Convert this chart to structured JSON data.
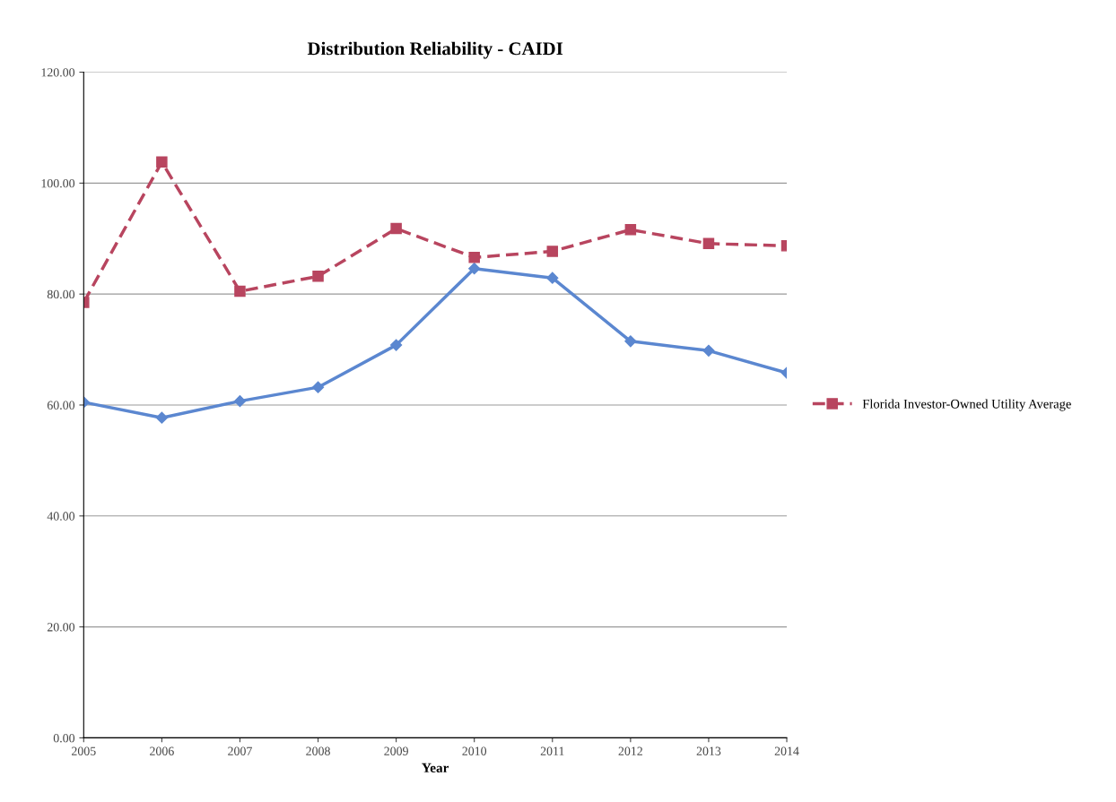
{
  "chart_data": {
    "type": "line",
    "title": "Distribution Reliability - CAIDI",
    "xlabel": "Year",
    "categories": [
      "2005",
      "2006",
      "2007",
      "2008",
      "2009",
      "2010",
      "2011",
      "2012",
      "2013",
      "2014"
    ],
    "series": [
      {
        "color": "#5b87d0",
        "marker": "diamond",
        "line_style": "solid",
        "values": [
          60.5,
          57.7,
          60.7,
          63.2,
          70.8,
          84.6,
          82.9,
          71.5,
          69.8,
          65.8
        ]
      },
      {
        "name": "Florida Investor-Owned Utility Average",
        "color": "#b8455f",
        "marker": "square",
        "line_style": "dashed",
        "values": [
          78.5,
          103.8,
          80.5,
          83.2,
          91.8,
          86.6,
          87.7,
          91.6,
          89.1,
          88.7
        ]
      }
    ],
    "ylim": [
      0,
      120
    ],
    "yticks": [
      {
        "value": 0,
        "label": "0.00"
      },
      {
        "value": 20,
        "label": "20.00"
      },
      {
        "value": 40,
        "label": "40.00"
      },
      {
        "value": 60,
        "label": "60.00"
      },
      {
        "value": 80,
        "label": "80.00"
      },
      {
        "value": 100,
        "label": "100.00"
      },
      {
        "value": 120,
        "label": "120.00"
      }
    ],
    "grid": "y",
    "legend": "right"
  }
}
